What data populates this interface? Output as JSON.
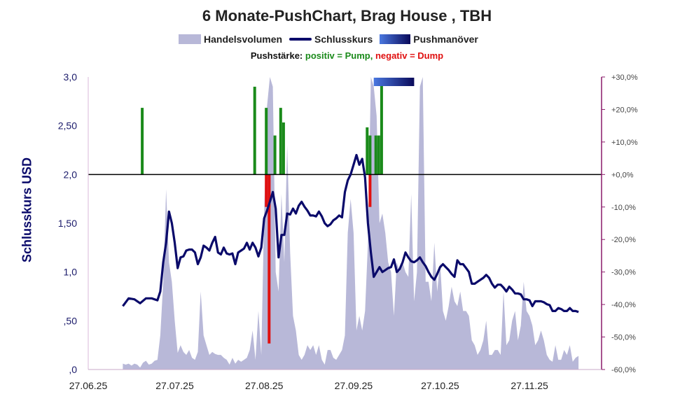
{
  "chart_data": {
    "type": "line",
    "title": "6 Monate-PushChart, Brag House , TBH",
    "legend": {
      "volume": "Handelsvolumen",
      "close": "Schlusskurs",
      "push": "Pushmanöver"
    },
    "subtitle": {
      "prefix": "Pushstärke:",
      "positive": "positiv = Pump",
      "separator": ",",
      "negative": "negativ = Dump"
    },
    "ylabel": "Schlusskurs USD",
    "y_left_ticks": [
      ",0",
      ",50",
      "1,0",
      "1,50",
      "2,0",
      "2,50",
      "3,0"
    ],
    "y_left_range": [
      0,
      3
    ],
    "y_right_ticks": [
      "-60,0%",
      "-50,0%",
      "-40,0%",
      "-30,0%",
      "-20,0%",
      "-10,0%",
      "+0,0%",
      "+10,0%",
      "+20,0%",
      "+30,0%"
    ],
    "y_right_range": [
      -60,
      30
    ],
    "x_ticks": [
      "27.06.25",
      "27.07.25",
      "27.08.25",
      "27.09.25",
      "27.10.25",
      "27.11.25"
    ],
    "x_range_days": [
      0,
      178
    ],
    "close_series": {
      "name": "Schlusskurs",
      "points": [
        [
          12,
          0.65
        ],
        [
          14,
          0.73
        ],
        [
          16,
          0.72
        ],
        [
          18,
          0.68
        ],
        [
          20,
          0.73
        ],
        [
          22,
          0.73
        ],
        [
          24,
          0.71
        ],
        [
          25,
          0.8
        ],
        [
          26,
          1.1
        ],
        [
          27,
          1.3
        ],
        [
          28,
          1.62
        ],
        [
          29,
          1.5
        ],
        [
          30,
          1.3
        ],
        [
          31,
          1.04
        ],
        [
          32,
          1.15
        ],
        [
          33,
          1.16
        ],
        [
          34,
          1.22
        ],
        [
          35,
          1.23
        ],
        [
          36,
          1.23
        ],
        [
          37,
          1.2
        ],
        [
          38,
          1.08
        ],
        [
          39,
          1.15
        ],
        [
          40,
          1.27
        ],
        [
          41,
          1.25
        ],
        [
          42,
          1.22
        ],
        [
          43,
          1.3
        ],
        [
          44,
          1.36
        ],
        [
          45,
          1.2
        ],
        [
          46,
          1.18
        ],
        [
          47,
          1.25
        ],
        [
          48,
          1.19
        ],
        [
          49,
          1.18
        ],
        [
          50,
          1.19
        ],
        [
          51,
          1.08
        ],
        [
          52,
          1.2
        ],
        [
          53,
          1.22
        ],
        [
          54,
          1.24
        ],
        [
          55,
          1.3
        ],
        [
          56,
          1.23
        ],
        [
          57,
          1.3
        ],
        [
          58,
          1.25
        ],
        [
          59,
          1.16
        ],
        [
          60,
          1.25
        ],
        [
          61,
          1.55
        ],
        [
          62,
          1.63
        ],
        [
          63,
          1.72
        ],
        [
          64,
          1.82
        ],
        [
          65,
          1.65
        ],
        [
          66,
          1.15
        ],
        [
          67,
          1.38
        ],
        [
          68,
          1.38
        ],
        [
          69,
          1.6
        ],
        [
          70,
          1.59
        ],
        [
          71,
          1.65
        ],
        [
          72,
          1.6
        ],
        [
          73,
          1.68
        ],
        [
          74,
          1.72
        ],
        [
          75,
          1.67
        ],
        [
          76,
          1.63
        ],
        [
          77,
          1.58
        ],
        [
          78,
          1.58
        ],
        [
          79,
          1.57
        ],
        [
          80,
          1.62
        ],
        [
          81,
          1.57
        ],
        [
          82,
          1.5
        ],
        [
          83,
          1.47
        ],
        [
          84,
          1.49
        ],
        [
          85,
          1.53
        ],
        [
          86,
          1.55
        ],
        [
          87,
          1.58
        ],
        [
          88,
          1.56
        ],
        [
          89,
          1.82
        ],
        [
          90,
          1.94
        ],
        [
          91,
          2.0
        ],
        [
          92,
          2.1
        ],
        [
          93,
          2.2
        ],
        [
          94,
          2.1
        ],
        [
          95,
          2.16
        ],
        [
          96,
          1.97
        ],
        [
          97,
          1.5
        ],
        [
          98,
          1.2
        ],
        [
          99,
          0.95
        ],
        [
          100,
          1.0
        ],
        [
          101,
          1.05
        ],
        [
          102,
          1.0
        ],
        [
          103,
          1.02
        ],
        [
          104,
          1.04
        ],
        [
          105,
          1.05
        ],
        [
          106,
          1.13
        ],
        [
          107,
          1.0
        ],
        [
          108,
          1.03
        ],
        [
          109,
          1.1
        ],
        [
          110,
          1.2
        ],
        [
          111,
          1.15
        ],
        [
          112,
          1.11
        ],
        [
          113,
          1.1
        ],
        [
          114,
          1.12
        ],
        [
          115,
          1.15
        ],
        [
          116,
          1.1
        ],
        [
          117,
          1.06
        ],
        [
          118,
          1.0
        ],
        [
          119,
          0.95
        ],
        [
          120,
          0.92
        ],
        [
          121,
          0.98
        ],
        [
          122,
          1.05
        ],
        [
          123,
          1.08
        ],
        [
          124,
          1.05
        ],
        [
          125,
          1.02
        ],
        [
          126,
          0.98
        ],
        [
          127,
          0.95
        ],
        [
          128,
          1.12
        ],
        [
          129,
          1.08
        ],
        [
          130,
          1.08
        ],
        [
          131,
          1.04
        ],
        [
          132,
          1.0
        ],
        [
          133,
          0.88
        ],
        [
          134,
          0.88
        ],
        [
          135,
          0.9
        ],
        [
          136,
          0.92
        ],
        [
          137,
          0.94
        ],
        [
          138,
          0.97
        ],
        [
          139,
          0.94
        ],
        [
          140,
          0.88
        ],
        [
          141,
          0.84
        ],
        [
          142,
          0.87
        ],
        [
          143,
          0.87
        ],
        [
          144,
          0.84
        ],
        [
          145,
          0.8
        ],
        [
          146,
          0.85
        ],
        [
          147,
          0.82
        ],
        [
          148,
          0.78
        ],
        [
          149,
          0.78
        ],
        [
          150,
          0.77
        ],
        [
          151,
          0.72
        ],
        [
          152,
          0.72
        ],
        [
          153,
          0.71
        ],
        [
          154,
          0.65
        ],
        [
          155,
          0.7
        ],
        [
          156,
          0.7
        ],
        [
          157,
          0.7
        ],
        [
          158,
          0.69
        ],
        [
          159,
          0.67
        ],
        [
          160,
          0.66
        ],
        [
          161,
          0.6
        ],
        [
          162,
          0.6
        ],
        [
          163,
          0.63
        ],
        [
          164,
          0.62
        ],
        [
          165,
          0.6
        ],
        [
          166,
          0.6
        ],
        [
          167,
          0.63
        ],
        [
          168,
          0.6
        ],
        [
          169,
          0.6
        ],
        [
          170,
          0.59
        ]
      ]
    },
    "volume_series": {
      "name": "Handelsvolumen",
      "points": [
        [
          12,
          0.06
        ],
        [
          13,
          0.05
        ],
        [
          14,
          0.06
        ],
        [
          15,
          0.04
        ],
        [
          16,
          0.06
        ],
        [
          17,
          0.05
        ],
        [
          18,
          0.02
        ],
        [
          19,
          0.07
        ],
        [
          20,
          0.09
        ],
        [
          21,
          0.05
        ],
        [
          22,
          0.06
        ],
        [
          23,
          0.09
        ],
        [
          24,
          0.1
        ],
        [
          25,
          0.35
        ],
        [
          26,
          0.9
        ],
        [
          27,
          1.85
        ],
        [
          28,
          1.1
        ],
        [
          29,
          0.9
        ],
        [
          30,
          0.5
        ],
        [
          31,
          0.17
        ],
        [
          32,
          0.25
        ],
        [
          33,
          0.18
        ],
        [
          34,
          0.15
        ],
        [
          35,
          0.2
        ],
        [
          36,
          0.12
        ],
        [
          37,
          0.1
        ],
        [
          38,
          0.18
        ],
        [
          39,
          0.8
        ],
        [
          40,
          0.35
        ],
        [
          41,
          0.25
        ],
        [
          42,
          0.15
        ],
        [
          43,
          0.18
        ],
        [
          44,
          0.16
        ],
        [
          45,
          0.15
        ],
        [
          46,
          0.15
        ],
        [
          47,
          0.12
        ],
        [
          48,
          0.1
        ],
        [
          49,
          0.05
        ],
        [
          50,
          0.12
        ],
        [
          51,
          0.06
        ],
        [
          52,
          0.1
        ],
        [
          53,
          0.08
        ],
        [
          54,
          0.1
        ],
        [
          55,
          0.12
        ],
        [
          56,
          0.2
        ],
        [
          57,
          0.4
        ],
        [
          58,
          0.1
        ],
        [
          59,
          0.6
        ],
        [
          60,
          0.15
        ],
        [
          61,
          1.6
        ],
        [
          62,
          2.7
        ],
        [
          63,
          3.0
        ],
        [
          64,
          2.9
        ],
        [
          65,
          1.0
        ],
        [
          66,
          0.8
        ],
        [
          67,
          1.8
        ],
        [
          68,
          1.1
        ],
        [
          69,
          2.3
        ],
        [
          70,
          1.2
        ],
        [
          71,
          0.55
        ],
        [
          72,
          0.4
        ],
        [
          73,
          0.15
        ],
        [
          74,
          0.1
        ],
        [
          75,
          0.15
        ],
        [
          76,
          0.25
        ],
        [
          77,
          0.2
        ],
        [
          78,
          0.25
        ],
        [
          79,
          0.15
        ],
        [
          80,
          0.25
        ],
        [
          81,
          0.1
        ],
        [
          82,
          0.05
        ],
        [
          83,
          0.2
        ],
        [
          84,
          0.2
        ],
        [
          85,
          0.12
        ],
        [
          86,
          0.1
        ],
        [
          87,
          0.15
        ],
        [
          88,
          0.2
        ],
        [
          89,
          0.35
        ],
        [
          90,
          1.4
        ],
        [
          91,
          1.75
        ],
        [
          92,
          1.4
        ],
        [
          93,
          0.4
        ],
        [
          94,
          0.55
        ],
        [
          95,
          0.4
        ],
        [
          96,
          0.6
        ],
        [
          97,
          1.3
        ],
        [
          98,
          3.0
        ],
        [
          99,
          2.9
        ],
        [
          100,
          2.6
        ],
        [
          101,
          1.5
        ],
        [
          102,
          1.6
        ],
        [
          103,
          1.4
        ],
        [
          104,
          1.1
        ],
        [
          105,
          1.0
        ],
        [
          106,
          0.55
        ],
        [
          107,
          1.1
        ],
        [
          108,
          1.0
        ],
        [
          109,
          1.1
        ],
        [
          110,
          1.0
        ],
        [
          111,
          0.95
        ],
        [
          112,
          1.8
        ],
        [
          113,
          0.7
        ],
        [
          114,
          1.0
        ],
        [
          115,
          2.9
        ],
        [
          116,
          3.0
        ],
        [
          117,
          0.9
        ],
        [
          118,
          0.9
        ],
        [
          119,
          0.7
        ],
        [
          120,
          1.3
        ],
        [
          121,
          0.8
        ],
        [
          122,
          1.1
        ],
        [
          123,
          0.6
        ],
        [
          124,
          0.5
        ],
        [
          125,
          0.65
        ],
        [
          126,
          0.85
        ],
        [
          127,
          0.7
        ],
        [
          128,
          0.65
        ],
        [
          129,
          0.8
        ],
        [
          130,
          0.6
        ],
        [
          131,
          0.6
        ],
        [
          132,
          0.55
        ],
        [
          133,
          0.3
        ],
        [
          134,
          0.25
        ],
        [
          135,
          0.15
        ],
        [
          136,
          0.2
        ],
        [
          137,
          0.3
        ],
        [
          138,
          0.5
        ],
        [
          139,
          0.15
        ],
        [
          140,
          0.15
        ],
        [
          141,
          0.2
        ],
        [
          142,
          0.2
        ],
        [
          143,
          0.15
        ],
        [
          144,
          0.8
        ],
        [
          145,
          0.25
        ],
        [
          146,
          0.3
        ],
        [
          147,
          0.5
        ],
        [
          148,
          0.6
        ],
        [
          149,
          0.3
        ],
        [
          150,
          0.45
        ],
        [
          151,
          0.9
        ],
        [
          152,
          0.6
        ],
        [
          153,
          0.55
        ],
        [
          154,
          0.45
        ],
        [
          155,
          0.25
        ],
        [
          156,
          0.3
        ],
        [
          157,
          0.4
        ],
        [
          158,
          0.3
        ],
        [
          159,
          0.15
        ],
        [
          160,
          0.1
        ],
        [
          161,
          0.08
        ],
        [
          162,
          0.25
        ],
        [
          163,
          0.1
        ],
        [
          164,
          0.1
        ],
        [
          165,
          0.2
        ],
        [
          166,
          0.15
        ],
        [
          167,
          0.25
        ],
        [
          168,
          0.08
        ],
        [
          169,
          0.12
        ],
        [
          170,
          0.14
        ]
      ]
    },
    "push_strength": {
      "unit": "%",
      "bars": [
        [
          18,
          20.5
        ],
        [
          57,
          27
        ],
        [
          61,
          20.5
        ],
        [
          61,
          -10
        ],
        [
          62,
          -10
        ],
        [
          62,
          -52
        ],
        [
          64,
          12
        ],
        [
          66,
          20.5
        ],
        [
          67,
          16
        ],
        [
          96,
          14.5
        ],
        [
          97,
          12
        ],
        [
          97,
          -10
        ],
        [
          99,
          12
        ],
        [
          100,
          12
        ],
        [
          101,
          28
        ]
      ]
    },
    "push_maneuver": {
      "start_day": 99,
      "end_day": 113,
      "at_percent": 28.5
    },
    "colors": {
      "close": "#0a0a6a",
      "volume": "#b8b8d8",
      "positive": "#1a8a1a",
      "negative": "#e01010",
      "zero_line": "#000000",
      "right_axis": "#8a1a6a",
      "push_start": "#4a78e0",
      "push_end": "#0a0a5a"
    }
  }
}
